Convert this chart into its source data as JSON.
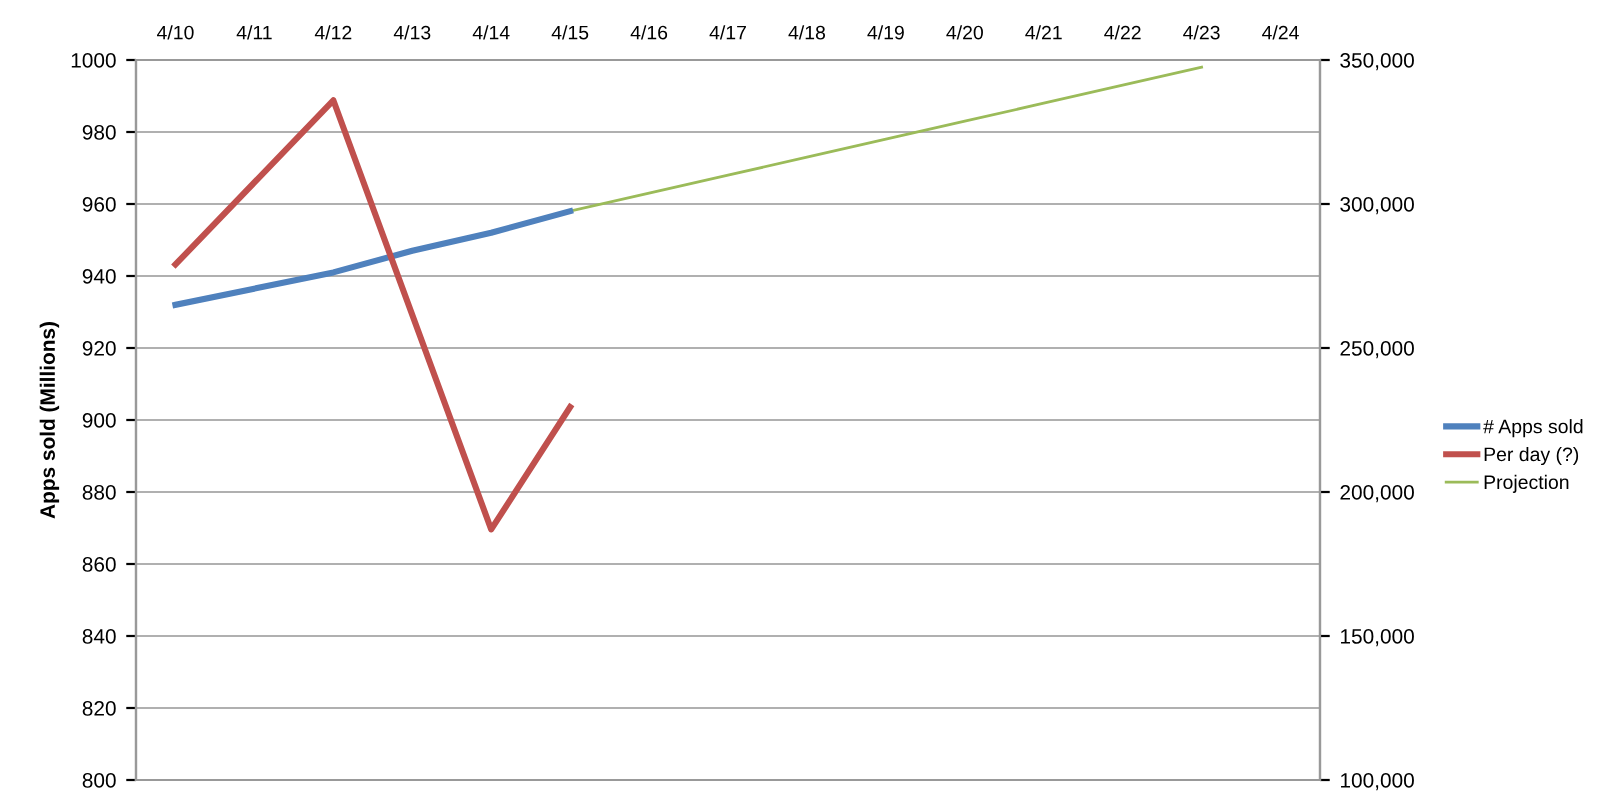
{
  "chart_data": {
    "type": "line",
    "ylabel": "Apps sold (Millions)",
    "categories": [
      "4/10",
      "4/11",
      "4/12",
      "4/13",
      "4/14",
      "4/15",
      "4/16",
      "4/17",
      "4/18",
      "4/19",
      "4/20",
      "4/21",
      "4/22",
      "4/23",
      "4/24"
    ],
    "series": [
      {
        "name": "# Apps sold",
        "color": "#4f81bd",
        "values": [
          932,
          null,
          941,
          947,
          952,
          958,
          null,
          null,
          null,
          null,
          null,
          null,
          null,
          null,
          null
        ]
      },
      {
        "name": "Per day (?)",
        "color": "#c0504d",
        "axis": "y2",
        "values": [
          279000,
          null,
          336000,
          null,
          187000,
          229500,
          null,
          null,
          null,
          null,
          null,
          null,
          null,
          null,
          null
        ]
      },
      {
        "name": "Projection",
        "color": "#9bbb59",
        "values": [
          null,
          null,
          null,
          null,
          null,
          958,
          963,
          968,
          973,
          978,
          983,
          988,
          993,
          998,
          null
        ]
      }
    ],
    "ylim": [
      800,
      1000
    ],
    "yticks": [
      800,
      820,
      840,
      860,
      880,
      900,
      920,
      940,
      960,
      980,
      1000
    ],
    "y2lim": [
      100000,
      350000
    ],
    "y2ticks": [
      {
        "value": 100000,
        "label": "100,000"
      },
      {
        "value": 150000,
        "label": "150,000"
      },
      {
        "value": 200000,
        "label": "200,000"
      },
      {
        "value": 250000,
        "label": "250,000"
      },
      {
        "value": 300000,
        "label": "300,000"
      },
      {
        "value": 350000,
        "label": "350,000"
      }
    ],
    "grid": "y",
    "legend": "right",
    "marker": "none",
    "line_style": "solid"
  }
}
